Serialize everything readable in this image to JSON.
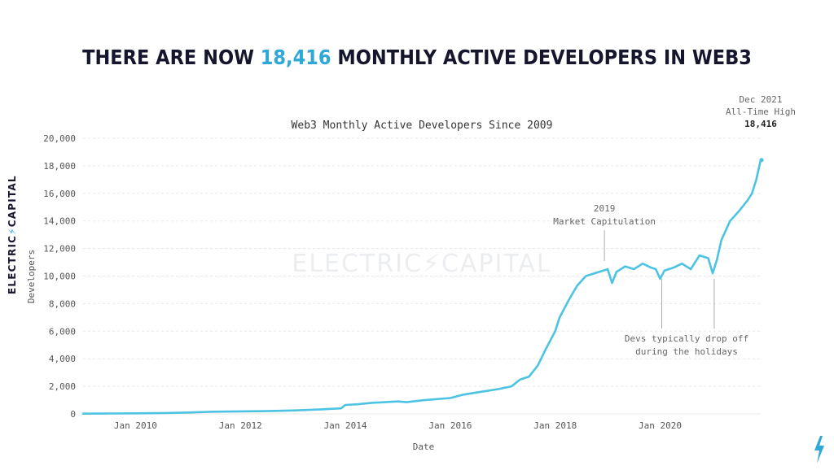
{
  "headline": {
    "prefix": "THERE ARE NOW ",
    "highlight": "18,416",
    "suffix": " MONTHLY ACTIVE DEVELOPERS IN WEB3"
  },
  "brand": {
    "vertical_left": "ELECTRIC",
    "vertical_sep": "⚡",
    "vertical_right": "CAPITAL",
    "watermark": "ELECTRIC⚡CAPITAL"
  },
  "colors": {
    "line": "#4dc3e3",
    "headline": "#15152e",
    "accent": "#2ea8d6"
  },
  "chart_data": {
    "type": "line",
    "title": "Web3 Monthly Active Developers Since 2009",
    "xlabel": "Date",
    "ylabel": "Developers",
    "ylim": [
      0,
      20000
    ],
    "xlim": [
      "2009-01",
      "2021-12"
    ],
    "grid": true,
    "yticks": [
      "0",
      "2,000",
      "4,000",
      "6,000",
      "8,000",
      "10,000",
      "12,000",
      "14,000",
      "16,000",
      "18,000",
      "20,000"
    ],
    "xticks": [
      {
        "label": "Jan 2010",
        "date": "2010-01"
      },
      {
        "label": "Jan 2012",
        "date": "2012-01"
      },
      {
        "label": "Jan 2014",
        "date": "2014-01"
      },
      {
        "label": "Jan 2016",
        "date": "2016-01"
      },
      {
        "label": "Jan 2018",
        "date": "2018-01"
      },
      {
        "label": "Jan 2020",
        "date": "2020-01"
      }
    ],
    "series": [
      {
        "points": [
          [
            "2009-01",
            20
          ],
          [
            "2009-07",
            30
          ],
          [
            "2010-01",
            40
          ],
          [
            "2010-07",
            60
          ],
          [
            "2011-01",
            100
          ],
          [
            "2011-07",
            160
          ],
          [
            "2012-01",
            180
          ],
          [
            "2012-07",
            200
          ],
          [
            "2013-01",
            250
          ],
          [
            "2013-07",
            320
          ],
          [
            "2013-12",
            400
          ],
          [
            "2014-01",
            650
          ],
          [
            "2014-04",
            700
          ],
          [
            "2014-07",
            800
          ],
          [
            "2015-01",
            900
          ],
          [
            "2015-03",
            850
          ],
          [
            "2015-07",
            1000
          ],
          [
            "2016-01",
            1150
          ],
          [
            "2016-04",
            1400
          ],
          [
            "2016-07",
            1550
          ],
          [
            "2016-12",
            1800
          ],
          [
            "2017-03",
            2000
          ],
          [
            "2017-05",
            2500
          ],
          [
            "2017-07",
            2700
          ],
          [
            "2017-09",
            3500
          ],
          [
            "2017-11",
            4800
          ],
          [
            "2018-01",
            6000
          ],
          [
            "2018-02",
            7000
          ],
          [
            "2018-04",
            8200
          ],
          [
            "2018-06",
            9300
          ],
          [
            "2018-08",
            10000
          ],
          [
            "2018-10",
            10200
          ],
          [
            "2018-12",
            10400
          ],
          [
            "2019-01",
            10500
          ],
          [
            "2019-02",
            9500
          ],
          [
            "2019-03",
            10300
          ],
          [
            "2019-05",
            10700
          ],
          [
            "2019-07",
            10500
          ],
          [
            "2019-09",
            10900
          ],
          [
            "2019-11",
            10600
          ],
          [
            "2019-12",
            10500
          ],
          [
            "2020-01",
            9800
          ],
          [
            "2020-02",
            10400
          ],
          [
            "2020-04",
            10600
          ],
          [
            "2020-06",
            10900
          ],
          [
            "2020-08",
            10500
          ],
          [
            "2020-10",
            11500
          ],
          [
            "2020-12",
            11300
          ],
          [
            "2021-01",
            10200
          ],
          [
            "2021-02",
            11200
          ],
          [
            "2021-03",
            12600
          ],
          [
            "2021-05",
            14000
          ],
          [
            "2021-07",
            14700
          ],
          [
            "2021-09",
            15500
          ],
          [
            "2021-10",
            16000
          ],
          [
            "2021-11",
            17000
          ],
          [
            "2021-12",
            18416
          ]
        ]
      }
    ],
    "annotations": [
      {
        "id": "ath",
        "lines": [
          "Dec 2021",
          "All-Time High",
          "18,416"
        ],
        "date": "2021-12",
        "value": 18416
      },
      {
        "id": "capitulation",
        "lines": [
          "2019",
          "Market Capitulation"
        ],
        "date": "2019-01",
        "value": 10500
      },
      {
        "id": "holidays",
        "lines": [
          "Devs typically drop off",
          "during the holidays"
        ],
        "dates": [
          "2020-01",
          "2021-01"
        ]
      }
    ]
  }
}
